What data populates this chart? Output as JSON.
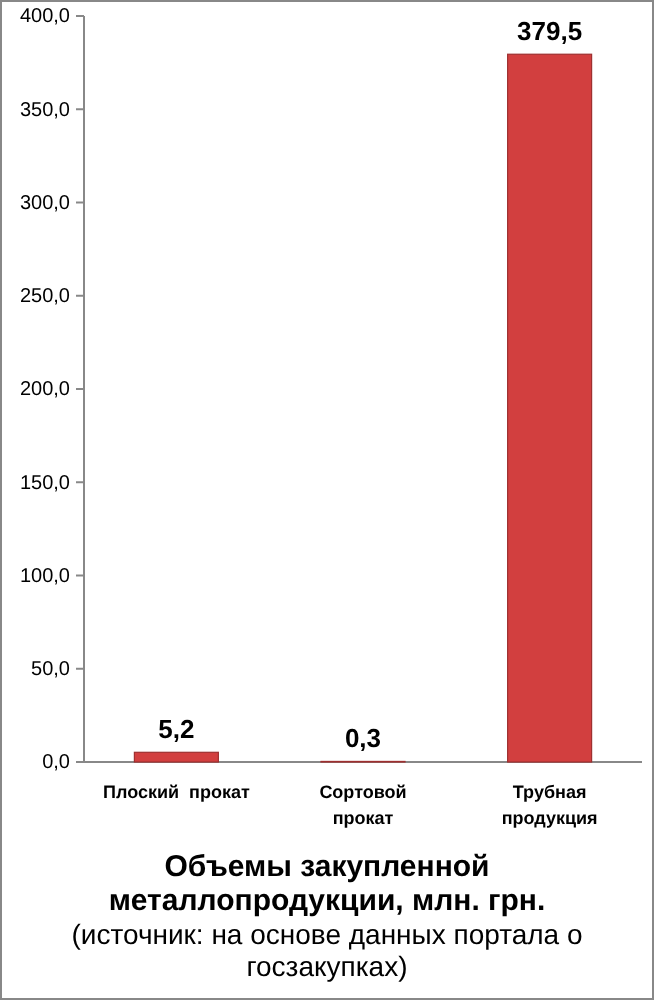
{
  "chart_data": {
    "type": "bar",
    "title": "Объемы закупленной металлопродукции, млн. грн.",
    "annotations": [
      "(источник: на основе данных портала о госзакупках)"
    ],
    "categories": [
      "Плоский  прокат",
      "Сортовой прокат",
      "Трубная продукция"
    ],
    "values": [
      5.2,
      0.3,
      379.5
    ],
    "value_labels": [
      "5,2",
      "0,3",
      "379,5"
    ],
    "color": "#d23f3f",
    "ylim": [
      0,
      400
    ],
    "yticks": [
      {
        "value": 0,
        "label": "0,0"
      },
      {
        "value": 50,
        "label": "50,0"
      },
      {
        "value": 100,
        "label": "100,0"
      },
      {
        "value": 150,
        "label": "150,0"
      },
      {
        "value": 200,
        "label": "200,0"
      },
      {
        "value": 250,
        "label": "250,0"
      },
      {
        "value": 300,
        "label": "300,0"
      },
      {
        "value": 350,
        "label": "350,0"
      },
      {
        "value": 400,
        "label": "400,0"
      }
    ],
    "grid": false
  }
}
